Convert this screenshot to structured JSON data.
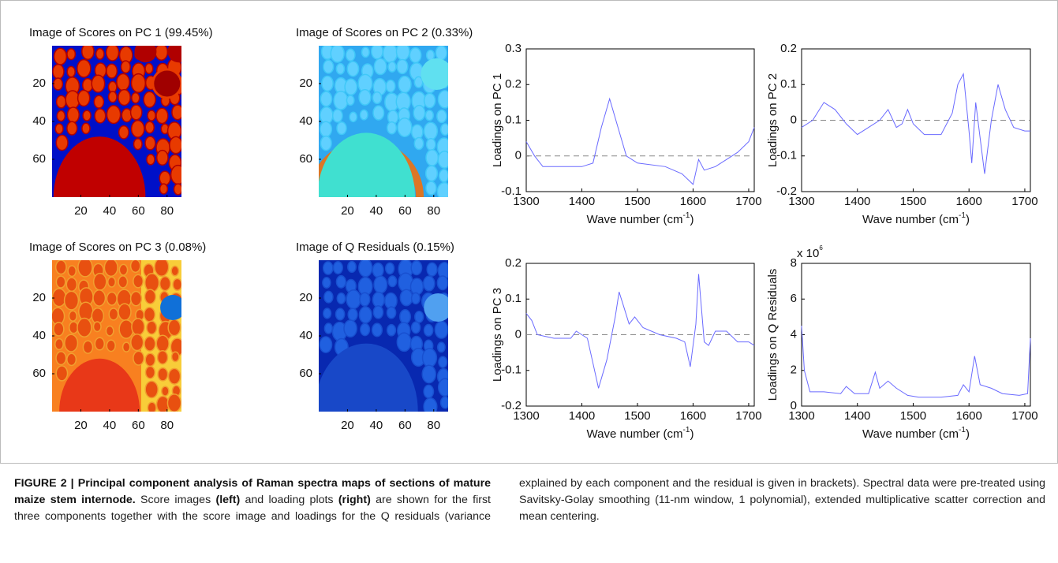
{
  "chart_data": [
    {
      "type": "image",
      "title": "Image of Scores on PC 1 (99.45%)",
      "xlim": [
        0,
        90
      ],
      "ylim": [
        0,
        80
      ],
      "xticks": [
        20,
        40,
        60,
        80
      ],
      "yticks": [
        20,
        40,
        60
      ]
    },
    {
      "type": "image",
      "title": "Image of Scores on PC 2 (0.33%)",
      "xlim": [
        0,
        90
      ],
      "ylim": [
        0,
        80
      ],
      "xticks": [
        20,
        40,
        60,
        80
      ],
      "yticks": [
        20,
        40,
        60
      ]
    },
    {
      "type": "line",
      "ylabel": "Loadings on PC 1",
      "xlabel": [
        "Wave number (cm",
        "-1",
        ")"
      ],
      "color": "#6a6aff",
      "zero_line": true,
      "xlim": [
        1300,
        1710
      ],
      "xticks": [
        1300,
        1400,
        1500,
        1600,
        1700
      ],
      "ylim": [
        -0.1,
        0.3
      ],
      "yticks": [
        -0.1,
        0,
        0.1,
        0.2,
        0.3
      ],
      "x": [
        1300,
        1315,
        1330,
        1360,
        1400,
        1420,
        1435,
        1450,
        1465,
        1480,
        1500,
        1550,
        1580,
        1600,
        1610,
        1620,
        1640,
        1660,
        1680,
        1700,
        1710
      ],
      "values": [
        0.04,
        0.0,
        -0.03,
        -0.03,
        -0.03,
        -0.02,
        0.08,
        0.16,
        0.08,
        0.0,
        -0.02,
        -0.03,
        -0.05,
        -0.08,
        -0.01,
        -0.04,
        -0.03,
        -0.01,
        0.01,
        0.04,
        0.08
      ]
    },
    {
      "type": "line",
      "ylabel": "Loadings on PC 2",
      "xlabel": [
        "Wave number (cm",
        "-1",
        ")"
      ],
      "color": "#6a6aff",
      "zero_line": true,
      "xlim": [
        1300,
        1710
      ],
      "xticks": [
        1300,
        1400,
        1500,
        1600,
        1700
      ],
      "ylim": [
        -0.2,
        0.2
      ],
      "yticks": [
        -0.2,
        -0.1,
        0,
        0.1,
        0.2
      ],
      "x": [
        1300,
        1320,
        1340,
        1360,
        1380,
        1400,
        1420,
        1440,
        1455,
        1470,
        1480,
        1490,
        1500,
        1520,
        1550,
        1570,
        1580,
        1590,
        1600,
        1605,
        1612,
        1620,
        1628,
        1640,
        1652,
        1665,
        1680,
        1700,
        1710
      ],
      "values": [
        -0.02,
        0.0,
        0.05,
        0.03,
        -0.01,
        -0.04,
        -0.02,
        0.0,
        0.03,
        -0.02,
        -0.01,
        0.03,
        -0.01,
        -0.04,
        -0.04,
        0.02,
        0.1,
        0.13,
        -0.03,
        -0.12,
        0.05,
        -0.05,
        -0.15,
        0.0,
        0.1,
        0.03,
        -0.02,
        -0.03,
        -0.03
      ]
    },
    {
      "type": "image",
      "title": "Image of Scores on PC 3 (0.08%)",
      "xlim": [
        0,
        90
      ],
      "ylim": [
        0,
        80
      ],
      "xticks": [
        20,
        40,
        60,
        80
      ],
      "yticks": [
        20,
        40,
        60
      ]
    },
    {
      "type": "image",
      "title": "Image of Q Residuals (0.15%)",
      "xlim": [
        0,
        90
      ],
      "ylim": [
        0,
        80
      ],
      "xticks": [
        20,
        40,
        60,
        80
      ],
      "yticks": [
        20,
        40,
        60
      ]
    },
    {
      "type": "line",
      "ylabel": "Loadings on PC 3",
      "xlabel": [
        "Wave number (cm",
        "-1",
        ")"
      ],
      "color": "#6a6aff",
      "zero_line": true,
      "xlim": [
        1300,
        1710
      ],
      "xticks": [
        1300,
        1400,
        1500,
        1600,
        1700
      ],
      "ylim": [
        -0.2,
        0.2
      ],
      "yticks": [
        -0.2,
        -0.1,
        0,
        0.1,
        0.2
      ],
      "x": [
        1300,
        1310,
        1320,
        1350,
        1380,
        1390,
        1410,
        1420,
        1430,
        1445,
        1460,
        1467,
        1475,
        1485,
        1495,
        1510,
        1540,
        1570,
        1585,
        1595,
        1605,
        1610,
        1620,
        1628,
        1640,
        1660,
        1680,
        1700,
        1710
      ],
      "values": [
        0.06,
        0.04,
        0.0,
        -0.01,
        -0.01,
        0.01,
        -0.01,
        -0.08,
        -0.15,
        -0.07,
        0.05,
        0.12,
        0.08,
        0.03,
        0.05,
        0.02,
        0.0,
        -0.01,
        -0.02,
        -0.09,
        0.03,
        0.17,
        -0.02,
        -0.03,
        0.01,
        0.01,
        -0.02,
        -0.02,
        -0.03
      ]
    },
    {
      "type": "line",
      "ylabel": "Loadings on Q Residuals",
      "xlabel": [
        "Wave number (cm",
        "-1",
        ")"
      ],
      "color": "#6a6aff",
      "zero_line": false,
      "exponent": [
        "x 10",
        "6"
      ],
      "xlim": [
        1300,
        1710
      ],
      "xticks": [
        1300,
        1400,
        1500,
        1600,
        1700
      ],
      "ylim": [
        0,
        8
      ],
      "yticks": [
        0,
        2,
        4,
        6,
        8
      ],
      "x": [
        1300,
        1305,
        1315,
        1340,
        1370,
        1380,
        1395,
        1420,
        1432,
        1440,
        1455,
        1470,
        1490,
        1510,
        1550,
        1580,
        1590,
        1600,
        1610,
        1620,
        1640,
        1660,
        1690,
        1705,
        1710
      ],
      "values": [
        4.5,
        2.0,
        0.8,
        0.8,
        0.7,
        1.1,
        0.7,
        0.7,
        1.9,
        1.0,
        1.4,
        1.0,
        0.6,
        0.5,
        0.5,
        0.6,
        1.2,
        0.8,
        2.8,
        1.2,
        1.0,
        0.7,
        0.6,
        0.7,
        3.8
      ]
    }
  ],
  "caption": {
    "columns": [
      [
        {
          "text": "FIGURE 2 | Principal component analysis of Raman spectra maps of sections of mature maize stem internode.",
          "bold": true
        },
        {
          "text": " Score images ",
          "bold": false
        },
        {
          "text": "(left)",
          "bold": true
        },
        {
          "text": " and loading plots ",
          "bold": false
        },
        {
          "text": "(right)",
          "bold": true
        },
        {
          "text": " are shown for the first three components together with the score image and loadings for the Q residuals (variance",
          "bold": false
        }
      ],
      [
        {
          "text": "explained by each component and the residual is given in brackets). Spectral data were pre-treated using Savitsky-Golay smoothing (11-nm window, 1 polynomial), extended multiplicative scatter correction and mean centering.",
          "bold": false
        }
      ]
    ]
  }
}
